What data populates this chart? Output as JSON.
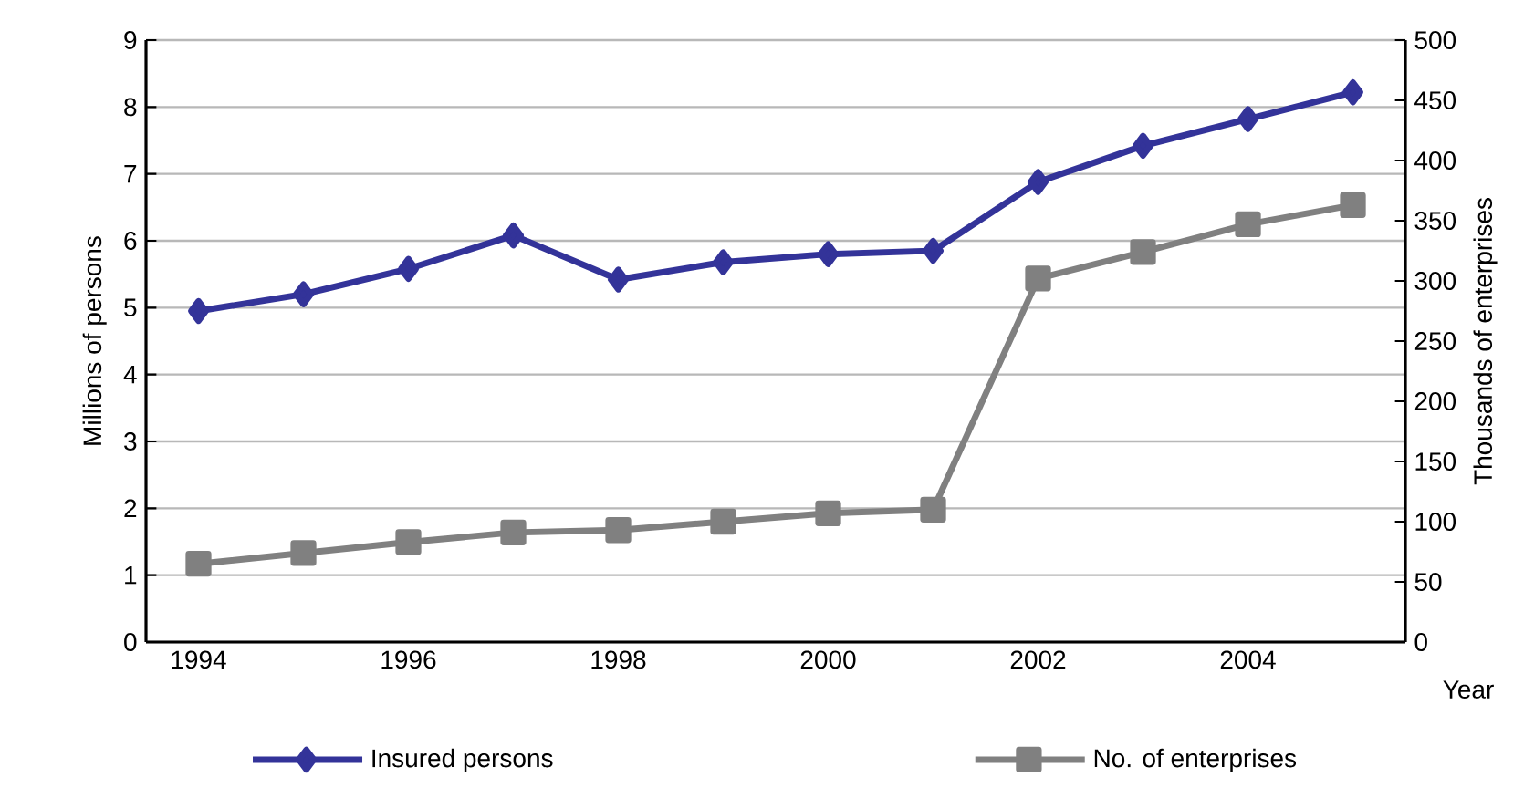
{
  "chart_data": {
    "type": "line",
    "categories": [
      "1994",
      null,
      "1996",
      null,
      "1998",
      null,
      "2000",
      null,
      "2002",
      null,
      "2004",
      null
    ],
    "xlabel": "Year",
    "ylabel": "Millions of persons",
    "y2label": "Thousands of enterprises",
    "series": [
      {
        "name": "Insured persons",
        "color": "#333399",
        "marker": "diamond",
        "values": [
          4.95,
          5.2,
          5.58,
          6.08,
          5.42,
          5.68,
          5.8,
          5.85,
          6.88,
          7.42,
          7.82,
          8.22
        ]
      },
      {
        "name": "No. of enterprises",
        "color": "#808080",
        "marker": "square",
        "axis": "y2",
        "values": [
          65,
          74,
          83,
          91,
          93,
          100,
          107,
          110,
          302,
          324,
          347,
          363
        ]
      }
    ],
    "ylim": [
      0,
      9
    ],
    "yticks": [
      0,
      1,
      2,
      3,
      4,
      5,
      6,
      7,
      8,
      9
    ],
    "y2lim": [
      0,
      500
    ],
    "y2ticks": [
      0,
      50,
      100,
      150,
      200,
      250,
      300,
      350,
      400,
      450,
      500
    ],
    "grid": "y",
    "legend": "bottom",
    "line_style": "solid"
  }
}
